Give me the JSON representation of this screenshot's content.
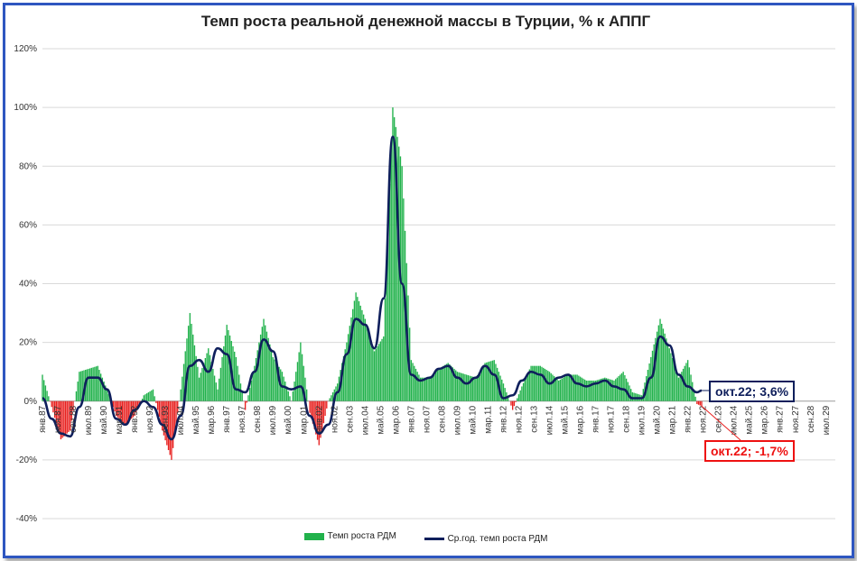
{
  "chart_data": {
    "type": "bar",
    "title": "Темп роста реальной денежной массы в Турции, % к АППГ",
    "ylim": [
      -40,
      120
    ],
    "yticks": [
      "-40%",
      "-20%",
      "0%",
      "20%",
      "40%",
      "60%",
      "80%",
      "100%",
      "120%"
    ],
    "ytick_values": [
      -40,
      -20,
      0,
      20,
      40,
      60,
      80,
      100,
      120
    ],
    "x_start": "янв.87",
    "x_end": "ноя.29",
    "x_ticks": [
      "янв.87",
      "ноя.87",
      "сен.88",
      "июл.89",
      "май.90",
      "мар.91",
      "янв.92",
      "ноя.92",
      "сен.93",
      "июл.94",
      "май.95",
      "мар.96",
      "янв.97",
      "ноя.97",
      "сен.98",
      "июл.99",
      "май.00",
      "мар.01",
      "янв.02",
      "ноя.02",
      "сен.03",
      "июл.04",
      "май.05",
      "мар.06",
      "янв.07",
      "ноя.07",
      "сен.08",
      "июл.09",
      "май.10",
      "мар.11",
      "янв.12",
      "ноя.12",
      "сен.13",
      "июл.14",
      "май.15",
      "мар.16",
      "янв.17",
      "ноя.17",
      "сен.18",
      "июл.19",
      "май.20",
      "мар.21",
      "янв.22",
      "ноя.22",
      "сен.23",
      "июл.24",
      "май.25",
      "мар.26",
      "янв.27",
      "ноя.27",
      "сен.28",
      "июл.29"
    ],
    "grid": true,
    "legend_position": "bottom",
    "colors": {
      "positive_bars": "#22b24c",
      "negative_bars": "#e8201f",
      "line": "#0f1f5c"
    },
    "series": [
      {
        "name": "Темп роста РДМ",
        "kind": "bar",
        "data": [
          [
            "янв.87",
            9
          ],
          [
            "янв.88",
            -13
          ],
          [
            "июл.88",
            -10
          ],
          [
            "янв.89",
            10
          ],
          [
            "июл.89",
            11
          ],
          [
            "янв.90",
            12
          ],
          [
            "июл.90",
            4
          ],
          [
            "янв.91",
            -5
          ],
          [
            "июл.91",
            -8
          ],
          [
            "янв.92",
            -5
          ],
          [
            "июл.92",
            2
          ],
          [
            "янв.93",
            4
          ],
          [
            "июл.93",
            -10
          ],
          [
            "янв.94",
            -20
          ],
          [
            "июл.94",
            4
          ],
          [
            "янв.95",
            30
          ],
          [
            "июл.95",
            8
          ],
          [
            "янв.96",
            18
          ],
          [
            "июл.96",
            4
          ],
          [
            "янв.97",
            26
          ],
          [
            "июл.97",
            15
          ],
          [
            "янв.98",
            -3
          ],
          [
            "июл.98",
            12
          ],
          [
            "янв.99",
            28
          ],
          [
            "июл.99",
            15
          ],
          [
            "янв.00",
            10
          ],
          [
            "июл.00",
            0
          ],
          [
            "янв.01",
            20
          ],
          [
            "июл.01",
            -4
          ],
          [
            "янв.02",
            -15
          ],
          [
            "июл.02",
            0
          ],
          [
            "янв.03",
            6
          ],
          [
            "июл.03",
            20
          ],
          [
            "янв.04",
            37
          ],
          [
            "июл.04",
            28
          ],
          [
            "янв.05",
            17
          ],
          [
            "июл.05",
            22
          ],
          [
            "янв.06",
            100
          ],
          [
            "июл.06",
            80
          ],
          [
            "янв.07",
            14
          ],
          [
            "июл.07",
            8
          ],
          [
            "янв.08",
            8
          ],
          [
            "июл.08",
            11
          ],
          [
            "янв.09",
            13
          ],
          [
            "июл.09",
            10
          ],
          [
            "янв.10",
            9
          ],
          [
            "июл.10",
            8
          ],
          [
            "янв.11",
            13
          ],
          [
            "июл.11",
            14
          ],
          [
            "янв.12",
            6
          ],
          [
            "июл.12",
            -3
          ],
          [
            "янв.13",
            5
          ],
          [
            "июл.13",
            12
          ],
          [
            "янв.14",
            12
          ],
          [
            "июл.14",
            10
          ],
          [
            "янв.15",
            7
          ],
          [
            "июл.15",
            9
          ],
          [
            "янв.16",
            9
          ],
          [
            "июл.16",
            7
          ],
          [
            "янв.17",
            7
          ],
          [
            "июл.17",
            8
          ],
          [
            "янв.18",
            7
          ],
          [
            "июл.18",
            10
          ],
          [
            "янв.19",
            3
          ],
          [
            "июл.19",
            2
          ],
          [
            "янв.20",
            15
          ],
          [
            "июл.20",
            28
          ],
          [
            "янв.21",
            18
          ],
          [
            "июл.21",
            8
          ],
          [
            "янв.22",
            14
          ],
          [
            "июл.22",
            -1
          ],
          [
            "окт.22",
            -1.7
          ]
        ]
      },
      {
        "name": "Ср.год. темп роста РДМ",
        "kind": "line",
        "data": [
          [
            "янв.87",
            1
          ],
          [
            "июл.87",
            -6
          ],
          [
            "янв.88",
            -11
          ],
          [
            "июл.88",
            -12
          ],
          [
            "янв.89",
            -2
          ],
          [
            "июл.89",
            8
          ],
          [
            "янв.90",
            8
          ],
          [
            "июл.90",
            4
          ],
          [
            "янв.91",
            -6
          ],
          [
            "июл.91",
            -8
          ],
          [
            "янв.92",
            -3
          ],
          [
            "июл.92",
            0
          ],
          [
            "янв.93",
            -2
          ],
          [
            "июл.93",
            -8
          ],
          [
            "янв.94",
            -13
          ],
          [
            "июл.94",
            -5
          ],
          [
            "янв.95",
            12
          ],
          [
            "июл.95",
            14
          ],
          [
            "янв.96",
            10
          ],
          [
            "июл.96",
            18
          ],
          [
            "янв.97",
            16
          ],
          [
            "июл.97",
            4
          ],
          [
            "янв.98",
            3
          ],
          [
            "июл.98",
            10
          ],
          [
            "янв.99",
            21
          ],
          [
            "июл.99",
            17
          ],
          [
            "янв.00",
            5
          ],
          [
            "июл.00",
            4
          ],
          [
            "янв.01",
            5
          ],
          [
            "июл.01",
            -5
          ],
          [
            "янв.02",
            -11
          ],
          [
            "июл.02",
            -8
          ],
          [
            "янв.03",
            3
          ],
          [
            "июл.03",
            16
          ],
          [
            "янв.04",
            28
          ],
          [
            "июл.04",
            26
          ],
          [
            "янв.05",
            18
          ],
          [
            "июл.05",
            35
          ],
          [
            "янв.06",
            90
          ],
          [
            "июл.06",
            40
          ],
          [
            "янв.07",
            9
          ],
          [
            "июл.07",
            7
          ],
          [
            "янв.08",
            8
          ],
          [
            "июл.08",
            11
          ],
          [
            "янв.09",
            12
          ],
          [
            "июл.09",
            8
          ],
          [
            "янв.10",
            6
          ],
          [
            "июл.10",
            8
          ],
          [
            "янв.11",
            12
          ],
          [
            "июл.11",
            9
          ],
          [
            "янв.12",
            1
          ],
          [
            "июл.12",
            2
          ],
          [
            "янв.13",
            7
          ],
          [
            "июл.13",
            10
          ],
          [
            "янв.14",
            9
          ],
          [
            "июл.14",
            6
          ],
          [
            "янв.15",
            8
          ],
          [
            "июл.15",
            9
          ],
          [
            "янв.16",
            6
          ],
          [
            "июл.16",
            5
          ],
          [
            "янв.17",
            6
          ],
          [
            "июл.17",
            7
          ],
          [
            "янв.18",
            5
          ],
          [
            "июл.18",
            4
          ],
          [
            "янв.19",
            1
          ],
          [
            "июл.19",
            1
          ],
          [
            "янв.20",
            8
          ],
          [
            "июл.20",
            22
          ],
          [
            "янв.21",
            19
          ],
          [
            "июл.21",
            9
          ],
          [
            "янв.22",
            5
          ],
          [
            "июл.22",
            3
          ],
          [
            "окт.22",
            3.6
          ]
        ]
      }
    ],
    "annotations": [
      {
        "text": "окт.22; 3,6%",
        "series": "Ср.год. темп роста РДМ",
        "color": "#0f1f5c"
      },
      {
        "text": "окт.22; -1,7%",
        "series": "Темп роста РДМ",
        "color": "#e11111"
      }
    ]
  }
}
